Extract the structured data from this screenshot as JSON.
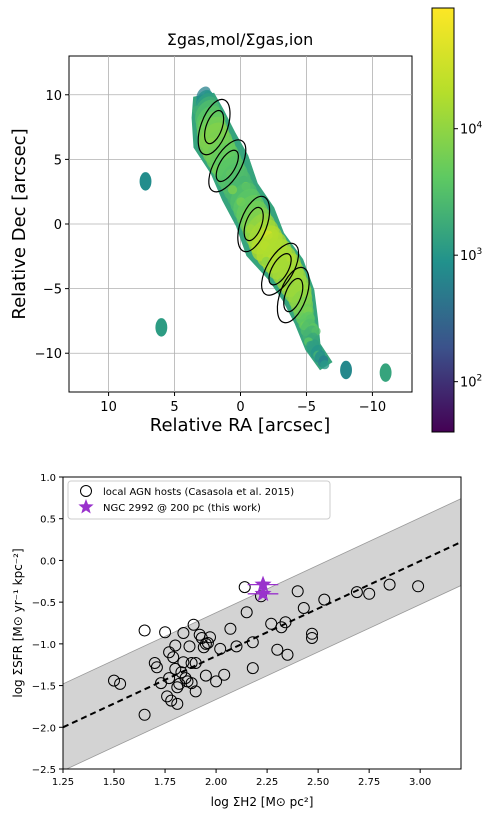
{
  "chart_data": [
    {
      "type": "heatmap",
      "title": "Σgas,mol/Σgas,ion",
      "xlabel": "Relative RA [arcsec]",
      "ylabel": "Relative Dec [arcsec]",
      "xlim": [
        13,
        -13
      ],
      "ylim": [
        -13,
        13
      ],
      "x_ticks": [
        "10",
        "5",
        "0",
        "−5",
        "−10"
      ],
      "y_ticks": [
        "10",
        "5",
        "0",
        "−5",
        "−10"
      ],
      "grid": true,
      "colorbar": {
        "scale": "log",
        "range": [
          40,
          90000
        ],
        "ticks": [
          {
            "base": "10",
            "exp": "2",
            "value": 100
          },
          {
            "base": "10",
            "exp": "3",
            "value": 1000
          },
          {
            "base": "10",
            "exp": "4",
            "value": 10000
          }
        ],
        "colormap": [
          "#440154",
          "#3b528b",
          "#21918c",
          "#5ec962",
          "#b5de2b",
          "#fde725"
        ]
      },
      "ridge": [
        {
          "x": 2.8,
          "y": 10.0,
          "width": 1.6,
          "value": 600
        },
        {
          "x": 2.5,
          "y": 8.5,
          "width": 2.8,
          "value": 3000
        },
        {
          "x": 2.0,
          "y": 6.5,
          "width": 3.4,
          "value": 8000
        },
        {
          "x": 1.0,
          "y": 4.5,
          "width": 3.2,
          "value": 4000
        },
        {
          "x": 0.0,
          "y": 2.5,
          "width": 3.0,
          "value": 2500
        },
        {
          "x": -1.0,
          "y": 0.5,
          "width": 3.2,
          "value": 6000
        },
        {
          "x": -2.0,
          "y": -1.5,
          "width": 3.5,
          "value": 20000
        },
        {
          "x": -3.5,
          "y": -3.5,
          "width": 3.2,
          "value": 15000
        },
        {
          "x": -4.5,
          "y": -5.5,
          "width": 2.6,
          "value": 12000
        },
        {
          "x": -5.0,
          "y": -7.5,
          "width": 1.8,
          "value": 4000
        },
        {
          "x": -5.5,
          "y": -9.5,
          "width": 1.4,
          "value": 1200
        },
        {
          "x": -6.5,
          "y": -11.0,
          "width": 1.0,
          "value": 500
        }
      ],
      "blobs": [
        {
          "x": 7.2,
          "y": 3.3,
          "value": 800
        },
        {
          "x": 6.0,
          "y": -8.0,
          "value": 1200
        },
        {
          "x": -11.0,
          "y": -11.5,
          "value": 1500
        },
        {
          "x": -8.0,
          "y": -11.3,
          "value": 700
        }
      ],
      "contour_centers": [
        {
          "x": 2.0,
          "y": 7.5
        },
        {
          "x": 1.0,
          "y": 4.5
        },
        {
          "x": -1.0,
          "y": 0.0
        },
        {
          "x": -3.0,
          "y": -3.5
        },
        {
          "x": -4.0,
          "y": -5.5
        }
      ]
    },
    {
      "type": "scatter",
      "xlabel": "log ΣH2 [M⊙ pc²]",
      "ylabel": "log ΣSFR [M⊙ yr⁻¹ kpc⁻²]",
      "xlim": [
        1.25,
        3.2
      ],
      "ylim": [
        -2.5,
        1.0
      ],
      "x_ticks": [
        "1.25",
        "1.50",
        "1.75",
        "2.00",
        "2.25",
        "2.50",
        "2.75",
        "3.00"
      ],
      "y_ticks": [
        "1.0",
        "0.5",
        "0.0",
        "−0.5",
        "−1.0",
        "−1.5",
        "−2.0",
        "−2.5"
      ],
      "legend_position": "top-left",
      "series": [
        {
          "name": "local AGN hosts (Casasola et al. 2015)",
          "marker": "open-circle",
          "points": [
            [
              1.5,
              -1.44
            ],
            [
              1.53,
              -1.48
            ],
            [
              1.65,
              -0.84
            ],
            [
              1.65,
              -1.85
            ],
            [
              1.7,
              -1.23
            ],
            [
              1.71,
              -1.28
            ],
            [
              1.73,
              -1.47
            ],
            [
              1.75,
              -0.86
            ],
            [
              1.76,
              -1.63
            ],
            [
              1.77,
              -1.1
            ],
            [
              1.77,
              -1.41
            ],
            [
              1.78,
              -1.68
            ],
            [
              1.79,
              -1.16
            ],
            [
              1.8,
              -1.02
            ],
            [
              1.8,
              -1.3
            ],
            [
              1.81,
              -1.52
            ],
            [
              1.81,
              -1.72
            ],
            [
              1.82,
              -1.48
            ],
            [
              1.83,
              -1.34
            ],
            [
              1.84,
              -0.87
            ],
            [
              1.84,
              -1.22
            ],
            [
              1.85,
              -1.41
            ],
            [
              1.86,
              -1.45
            ],
            [
              1.87,
              -1.03
            ],
            [
              1.88,
              -1.23
            ],
            [
              1.88,
              -1.47
            ],
            [
              1.89,
              -0.77
            ],
            [
              1.9,
              -1.23
            ],
            [
              1.9,
              -1.57
            ],
            [
              1.92,
              -0.89
            ],
            [
              1.93,
              -0.93
            ],
            [
              1.94,
              -1.04
            ],
            [
              1.95,
              -1.0
            ],
            [
              1.95,
              -1.38
            ],
            [
              1.96,
              -0.99
            ],
            [
              1.97,
              -0.92
            ],
            [
              2.0,
              -1.45
            ],
            [
              2.02,
              -1.06
            ],
            [
              2.04,
              -1.37
            ],
            [
              2.07,
              -0.82
            ],
            [
              2.1,
              -1.03
            ],
            [
              2.14,
              -0.32
            ],
            [
              2.15,
              -0.62
            ],
            [
              2.18,
              -1.29
            ],
            [
              2.18,
              -0.98
            ],
            [
              2.22,
              -0.43
            ],
            [
              2.27,
              -0.76
            ],
            [
              2.3,
              -1.07
            ],
            [
              2.32,
              -0.8
            ],
            [
              2.34,
              -0.74
            ],
            [
              2.35,
              -1.13
            ],
            [
              2.4,
              -0.37
            ],
            [
              2.43,
              -0.57
            ],
            [
              2.47,
              -0.88
            ],
            [
              2.47,
              -0.93
            ],
            [
              2.53,
              -0.47
            ],
            [
              2.69,
              -0.38
            ],
            [
              2.75,
              -0.4
            ],
            [
              2.85,
              -0.29
            ],
            [
              2.99,
              -0.31
            ]
          ]
        },
        {
          "name": "NGC 2992 @ 200 pc (this work)",
          "marker": "star",
          "color": "#9932cc",
          "points": [
            [
              2.23,
              -0.29
            ],
            [
              2.23,
              -0.4
            ]
          ],
          "xerr": [
            0.3,
            0.3
          ]
        }
      ],
      "fit_line": {
        "x": [
          1.25,
          3.2
        ],
        "y": [
          -2.0,
          0.22
        ]
      },
      "band_half_width": 0.52
    }
  ]
}
